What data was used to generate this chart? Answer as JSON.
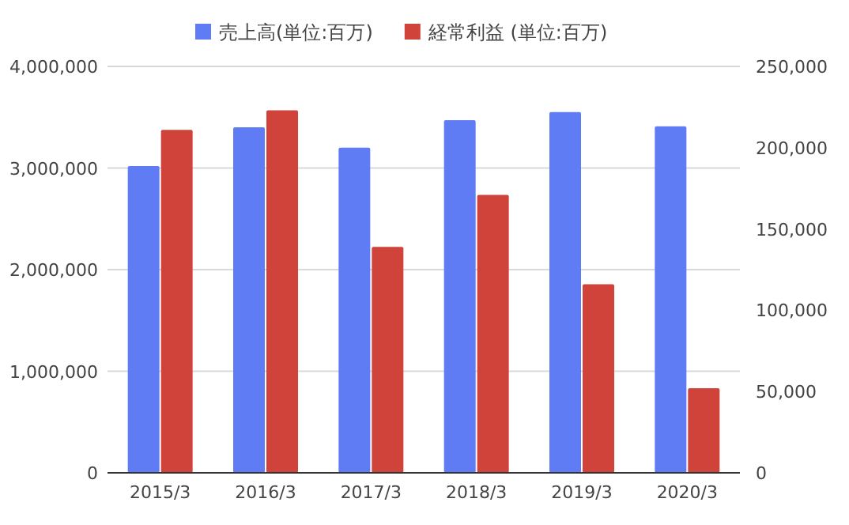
{
  "chart_data": {
    "type": "bar",
    "categories": [
      "2015/3",
      "2016/3",
      "2017/3",
      "2018/3",
      "2019/3",
      "2020/3"
    ],
    "series": [
      {
        "name": "売上高(単位:百万)",
        "color": "#5f7cf5",
        "values": [
          3020000,
          3400000,
          3200000,
          3470000,
          3550000,
          3410000
        ]
      },
      {
        "name": "経常利益 (単位:百万)",
        "color": "#d0433b",
        "axis": "y2",
        "values": [
          211000,
          223000,
          139000,
          171000,
          116000,
          52000
        ]
      }
    ],
    "ylim": [
      0,
      4000000
    ],
    "yticks": [
      {
        "value": 0,
        "label": "0"
      },
      {
        "value": 1000000,
        "label": "1,000,000"
      },
      {
        "value": 2000000,
        "label": "2,000,000"
      },
      {
        "value": 3000000,
        "label": "3,000,000"
      },
      {
        "value": 4000000,
        "label": "4,000,000"
      }
    ],
    "y2lim": [
      0,
      250000
    ],
    "y2ticks": [
      {
        "value": 0,
        "label": "0"
      },
      {
        "value": 50000,
        "label": "50,000"
      },
      {
        "value": 100000,
        "label": "100,000"
      },
      {
        "value": 150000,
        "label": "150,000"
      },
      {
        "value": 200000,
        "label": "200,000"
      },
      {
        "value": 250000,
        "label": "250,000"
      }
    ],
    "grid": "y",
    "legend": "top"
  }
}
